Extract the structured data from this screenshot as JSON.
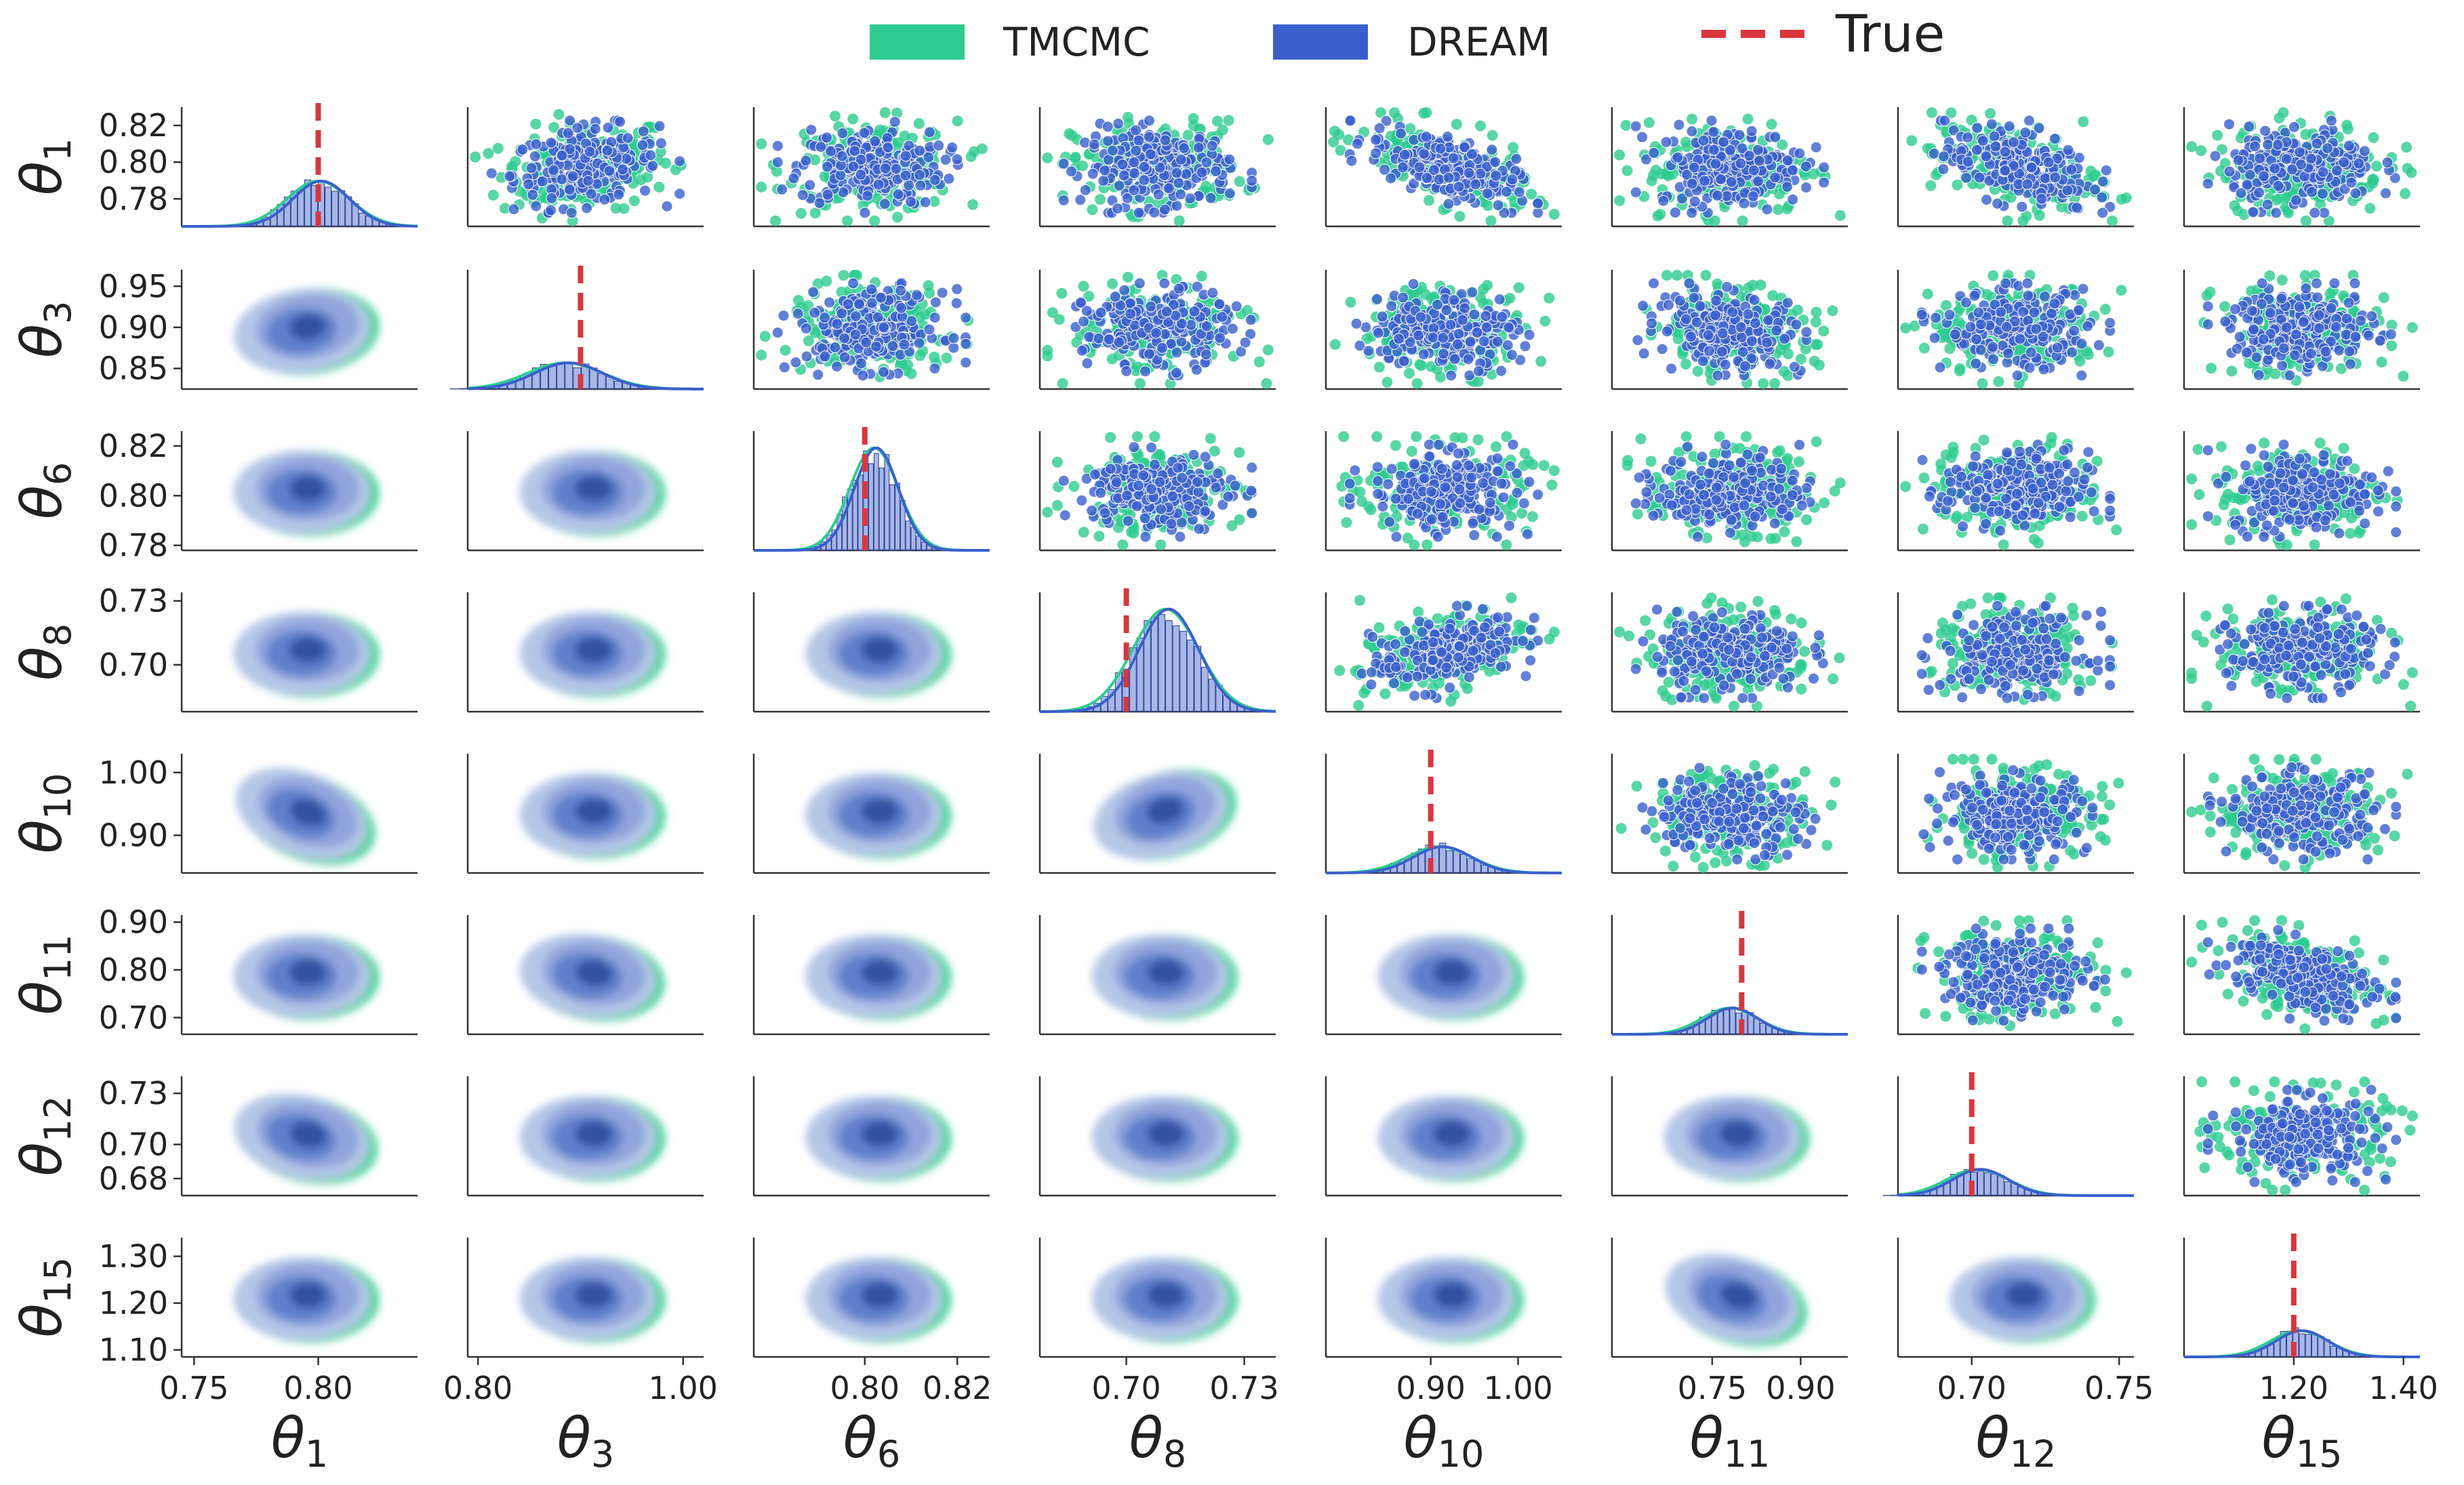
{
  "chart_data": {
    "type": "scatter",
    "title": "",
    "description_type": "pair plot (corner matrix): diagonal = histogram + KDE, upper triangle = scatter, lower triangle = 2D KDE density",
    "parameters": [
      {
        "symbol": "θ",
        "sub": "1",
        "true": 0.8,
        "mean": 0.8,
        "sd": 0.012,
        "axis_ticks": [
          "0.75",
          "0.80"
        ],
        "tick_values": [
          0.75,
          0.8
        ],
        "axis_range": [
          0.745,
          0.84
        ],
        "row_ticks": [
          "0.82",
          "0.80",
          "0.78"
        ],
        "row_tick_values": [
          0.82,
          0.8,
          0.78
        ],
        "row_range": [
          0.765,
          0.83
        ]
      },
      {
        "symbol": "θ",
        "sub": "3",
        "true": 0.9,
        "mean": 0.885,
        "sd": 0.035,
        "axis_ticks": [
          "0.80",
          "1.00"
        ],
        "tick_values": [
          0.8,
          1.0
        ],
        "axis_range": [
          0.79,
          1.02
        ],
        "row_ticks": [
          "0.95",
          "0.90",
          "0.85"
        ],
        "row_tick_values": [
          0.95,
          0.9,
          0.85
        ],
        "row_range": [
          0.825,
          0.97
        ]
      },
      {
        "symbol": "θ",
        "sub": "6",
        "true": 0.8,
        "mean": 0.802,
        "sd": 0.005,
        "axis_ticks": [
          "0.80",
          "0.82"
        ],
        "tick_values": [
          0.8,
          0.82
        ],
        "axis_range": [
          0.776,
          0.827
        ],
        "row_ticks": [
          "0.82",
          "0.80",
          "0.78"
        ],
        "row_tick_values": [
          0.82,
          0.8,
          0.78
        ],
        "row_range": [
          0.778,
          0.826
        ]
      },
      {
        "symbol": "θ",
        "sub": "8",
        "true": 0.7,
        "mean": 0.71,
        "sd": 0.008,
        "axis_ticks": [
          "0.70",
          "0.73"
        ],
        "tick_values": [
          0.7,
          0.73
        ],
        "axis_range": [
          0.678,
          0.738
        ],
        "row_ticks": [
          "0.73",
          "0.70"
        ],
        "row_tick_values": [
          0.73,
          0.7
        ],
        "row_range": [
          0.678,
          0.734
        ]
      },
      {
        "symbol": "θ",
        "sub": "10",
        "true": 0.9,
        "mean": 0.91,
        "sd": 0.035,
        "axis_ticks": [
          "0.90",
          "1.00"
        ],
        "tick_values": [
          0.9,
          1.0
        ],
        "axis_range": [
          0.78,
          1.05
        ],
        "row_ticks": [
          "1.00",
          "0.90"
        ],
        "row_tick_values": [
          1.0,
          0.9
        ],
        "row_range": [
          0.84,
          1.03
        ]
      },
      {
        "symbol": "θ",
        "sub": "11",
        "true": 0.8,
        "mean": 0.78,
        "sd": 0.045,
        "axis_ticks": [
          "0.75",
          "0.90"
        ],
        "tick_values": [
          0.75,
          0.9
        ],
        "axis_range": [
          0.58,
          0.98
        ],
        "row_ticks": [
          "0.90",
          "0.80",
          "0.70"
        ],
        "row_tick_values": [
          0.9,
          0.8,
          0.7
        ],
        "row_range": [
          0.665,
          0.915
        ]
      },
      {
        "symbol": "θ",
        "sub": "12",
        "true": 0.7,
        "mean": 0.702,
        "sd": 0.01,
        "axis_ticks": [
          "0.70",
          "0.75"
        ],
        "tick_values": [
          0.7,
          0.75
        ],
        "axis_range": [
          0.675,
          0.755
        ],
        "row_ticks": [
          "0.73",
          "0.70",
          "0.68"
        ],
        "row_tick_values": [
          0.73,
          0.7,
          0.68
        ],
        "row_range": [
          0.67,
          0.74
        ]
      },
      {
        "symbol": "θ",
        "sub": "15",
        "true": 1.2,
        "mean": 1.21,
        "sd": 0.05,
        "axis_ticks": [
          "1.20",
          "1.40"
        ],
        "tick_values": [
          1.2,
          1.4
        ],
        "axis_range": [
          1.0,
          1.43
        ],
        "row_ticks": [
          "1.30",
          "1.20",
          "1.10"
        ],
        "row_tick_values": [
          1.3,
          1.2,
          1.1
        ],
        "row_range": [
          1.085,
          1.34
        ]
      }
    ],
    "series": [
      {
        "name": "TMCMC",
        "color": "#2ecc8f",
        "kind": "samples"
      },
      {
        "name": "DREAM",
        "color": "#3a5fcd",
        "kind": "samples"
      },
      {
        "name": "True",
        "color": "#d9363e",
        "kind": "reference-line"
      }
    ],
    "legend": {
      "position": "top-center",
      "items": [
        "TMCMC",
        "DREAM",
        "True"
      ]
    }
  }
}
